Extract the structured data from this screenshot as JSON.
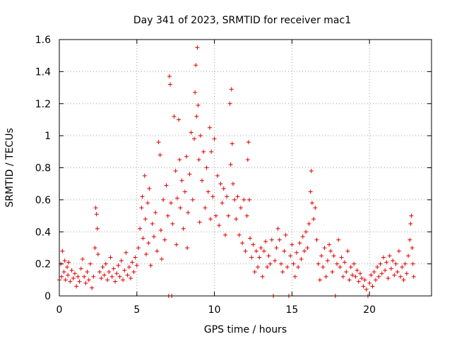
{
  "chart_data": {
    "type": "scatter",
    "title": "Day 341 of 2023, SRMTID for receiver mac1",
    "xlabel": "GPS time / hours",
    "ylabel": "SRMTID / TECUs",
    "xlim": [
      0,
      24
    ],
    "ylim": [
      0,
      1.6
    ],
    "xticks": [
      0,
      5,
      10,
      15,
      20
    ],
    "yticks": [
      0,
      0.2,
      0.4,
      0.6,
      0.8,
      1,
      1.2,
      1.4,
      1.6
    ],
    "xtick_labels": [
      "0",
      "5",
      "10",
      "15",
      "20"
    ],
    "ytick_labels": [
      "0",
      "0.2",
      "0.4",
      "0.6",
      "0.8",
      "1",
      "1.2",
      "1.4",
      "1.6"
    ],
    "grid": true,
    "marker": "+",
    "color": "#e00000",
    "series": [
      {
        "name": "SRMTID",
        "points": [
          [
            0.0,
            0.1
          ],
          [
            0.1,
            0.2
          ],
          [
            0.15,
            0.12
          ],
          [
            0.2,
            0.28
          ],
          [
            0.3,
            0.15
          ],
          [
            0.35,
            0.22
          ],
          [
            0.4,
            0.1
          ],
          [
            0.5,
            0.18
          ],
          [
            0.55,
            0.13
          ],
          [
            0.6,
            0.21
          ],
          [
            0.7,
            0.09
          ],
          [
            0.8,
            0.16
          ],
          [
            0.9,
            0.11
          ],
          [
            1.0,
            0.14
          ],
          [
            1.1,
            0.06
          ],
          [
            1.2,
            0.12
          ],
          [
            1.3,
            0.09
          ],
          [
            1.4,
            0.17
          ],
          [
            1.5,
            0.23
          ],
          [
            1.6,
            0.12
          ],
          [
            1.7,
            0.08
          ],
          [
            1.8,
            0.15
          ],
          [
            1.9,
            0.1
          ],
          [
            2.0,
            0.2
          ],
          [
            2.1,
            0.05
          ],
          [
            2.2,
            0.12
          ],
          [
            2.3,
            0.3
          ],
          [
            2.35,
            0.55
          ],
          [
            2.4,
            0.51
          ],
          [
            2.45,
            0.42
          ],
          [
            2.5,
            0.26
          ],
          [
            2.6,
            0.15
          ],
          [
            2.7,
            0.11
          ],
          [
            2.8,
            0.18
          ],
          [
            2.9,
            0.13
          ],
          [
            3.0,
            0.2
          ],
          [
            3.1,
            0.1
          ],
          [
            3.2,
            0.15
          ],
          [
            3.3,
            0.24
          ],
          [
            3.4,
            0.12
          ],
          [
            3.5,
            0.17
          ],
          [
            3.6,
            0.09
          ],
          [
            3.7,
            0.14
          ],
          [
            3.8,
            0.19
          ],
          [
            3.9,
            0.12
          ],
          [
            4.0,
            0.22
          ],
          [
            4.1,
            0.1
          ],
          [
            4.2,
            0.16
          ],
          [
            4.3,
            0.27
          ],
          [
            4.4,
            0.13
          ],
          [
            4.5,
            0.18
          ],
          [
            4.6,
            0.11
          ],
          [
            4.7,
            0.21
          ],
          [
            4.8,
            0.15
          ],
          [
            4.9,
            0.24
          ],
          [
            5.0,
            0.19
          ],
          [
            5.1,
            0.3
          ],
          [
            5.2,
            0.42
          ],
          [
            5.3,
            0.55
          ],
          [
            5.35,
            0.62
          ],
          [
            5.4,
            0.36
          ],
          [
            5.5,
            0.75
          ],
          [
            5.55,
            0.48
          ],
          [
            5.6,
            0.26
          ],
          [
            5.7,
            0.58
          ],
          [
            5.75,
            0.33
          ],
          [
            5.8,
            0.67
          ],
          [
            5.9,
            0.19
          ],
          [
            6.0,
            0.45
          ],
          [
            6.1,
            0.37
          ],
          [
            6.2,
            0.52
          ],
          [
            6.3,
            0.28
          ],
          [
            6.4,
            0.96
          ],
          [
            6.5,
            0.88
          ],
          [
            6.55,
            0.41
          ],
          [
            6.6,
            0.23
          ],
          [
            6.7,
            0.6
          ],
          [
            6.8,
            0.35
          ],
          [
            6.9,
            0.69
          ],
          [
            7.0,
            0.5
          ],
          [
            7.05,
            0.0
          ],
          [
            7.1,
            1.37
          ],
          [
            7.15,
            1.32
          ],
          [
            7.2,
            0.58
          ],
          [
            7.25,
            0.0
          ],
          [
            7.3,
            0.45
          ],
          [
            7.4,
            1.12
          ],
          [
            7.5,
            0.78
          ],
          [
            7.55,
            0.32
          ],
          [
            7.6,
            0.61
          ],
          [
            7.7,
            1.1
          ],
          [
            7.75,
            0.85
          ],
          [
            7.8,
            0.55
          ],
          [
            7.9,
            0.72
          ],
          [
            8.0,
            0.42
          ],
          [
            8.1,
            0.65
          ],
          [
            8.2,
            0.87
          ],
          [
            8.25,
            0.3
          ],
          [
            8.3,
            0.52
          ],
          [
            8.4,
            0.76
          ],
          [
            8.5,
            1.02
          ],
          [
            8.6,
            0.6
          ],
          [
            8.7,
            0.98
          ],
          [
            8.75,
            1.27
          ],
          [
            8.8,
            1.44
          ],
          [
            8.85,
            1.12
          ],
          [
            8.9,
            1.55
          ],
          [
            8.95,
            1.19
          ],
          [
            9.0,
            0.85
          ],
          [
            9.05,
            0.46
          ],
          [
            9.1,
            1.0
          ],
          [
            9.2,
            0.72
          ],
          [
            9.3,
            0.9
          ],
          [
            9.4,
            0.55
          ],
          [
            9.5,
            0.8
          ],
          [
            9.6,
            0.65
          ],
          [
            9.7,
            1.05
          ],
          [
            9.75,
            0.48
          ],
          [
            9.8,
            0.9
          ],
          [
            9.9,
            0.62
          ],
          [
            10.0,
            0.98
          ],
          [
            10.1,
            0.5
          ],
          [
            10.2,
            0.75
          ],
          [
            10.3,
            0.44
          ],
          [
            10.4,
            0.7
          ],
          [
            10.5,
            0.58
          ],
          [
            10.6,
            0.67
          ],
          [
            10.7,
            0.38
          ],
          [
            10.8,
            0.62
          ],
          [
            10.9,
            0.5
          ],
          [
            11.0,
            1.2
          ],
          [
            11.05,
            0.82
          ],
          [
            11.1,
            1.29
          ],
          [
            11.15,
            0.95
          ],
          [
            11.2,
            0.7
          ],
          [
            11.3,
            0.6
          ],
          [
            11.4,
            0.48
          ],
          [
            11.5,
            0.62
          ],
          [
            11.6,
            0.38
          ],
          [
            11.7,
            0.55
          ],
          [
            11.8,
            0.33
          ],
          [
            11.9,
            0.6
          ],
          [
            12.0,
            0.28
          ],
          [
            12.1,
            0.5
          ],
          [
            12.15,
            0.85
          ],
          [
            12.2,
            0.96
          ],
          [
            12.25,
            0.6
          ],
          [
            12.3,
            0.36
          ],
          [
            12.4,
            0.24
          ],
          [
            12.5,
            0.32
          ],
          [
            12.6,
            0.15
          ],
          [
            12.7,
            0.28
          ],
          [
            12.8,
            0.18
          ],
          [
            12.9,
            0.24
          ],
          [
            13.0,
            0.3
          ],
          [
            13.1,
            0.12
          ],
          [
            13.2,
            0.28
          ],
          [
            13.3,
            0.34
          ],
          [
            13.4,
            0.18
          ],
          [
            13.5,
            0.25
          ],
          [
            13.6,
            0.2
          ],
          [
            13.7,
            0.35
          ],
          [
            13.8,
            0.0
          ],
          [
            13.9,
            0.22
          ],
          [
            14.0,
            0.3
          ],
          [
            14.1,
            0.42
          ],
          [
            14.2,
            0.35
          ],
          [
            14.3,
            0.2
          ],
          [
            14.4,
            0.15
          ],
          [
            14.5,
            0.28
          ],
          [
            14.6,
            0.38
          ],
          [
            14.7,
            0.18
          ],
          [
            14.8,
            0.0
          ],
          [
            14.9,
            0.25
          ],
          [
            15.0,
            0.32
          ],
          [
            15.1,
            0.2
          ],
          [
            15.2,
            0.12
          ],
          [
            15.3,
            0.27
          ],
          [
            15.4,
            0.18
          ],
          [
            15.5,
            0.33
          ],
          [
            15.6,
            0.23
          ],
          [
            15.7,
            0.37
          ],
          [
            15.8,
            0.28
          ],
          [
            15.9,
            0.4
          ],
          [
            16.0,
            0.3
          ],
          [
            16.1,
            0.45
          ],
          [
            16.2,
            0.65
          ],
          [
            16.25,
            0.78
          ],
          [
            16.3,
            0.58
          ],
          [
            16.4,
            0.48
          ],
          [
            16.5,
            0.55
          ],
          [
            16.6,
            0.35
          ],
          [
            16.7,
            0.2
          ],
          [
            16.8,
            0.1
          ],
          [
            16.9,
            0.25
          ],
          [
            17.0,
            0.18
          ],
          [
            17.1,
            0.3
          ],
          [
            17.2,
            0.12
          ],
          [
            17.3,
            0.22
          ],
          [
            17.4,
            0.32
          ],
          [
            17.5,
            0.28
          ],
          [
            17.6,
            0.15
          ],
          [
            17.7,
            0.25
          ],
          [
            17.8,
            0.0
          ],
          [
            17.9,
            0.2
          ],
          [
            18.0,
            0.35
          ],
          [
            18.1,
            0.18
          ],
          [
            18.2,
            0.24
          ],
          [
            18.3,
            0.12
          ],
          [
            18.4,
            0.21
          ],
          [
            18.5,
            0.15
          ],
          [
            18.6,
            0.28
          ],
          [
            18.7,
            0.1
          ],
          [
            18.8,
            0.18
          ],
          [
            18.9,
            0.13
          ],
          [
            19.0,
            0.2
          ],
          [
            19.1,
            0.12
          ],
          [
            19.2,
            0.16
          ],
          [
            19.3,
            0.09
          ],
          [
            19.4,
            0.14
          ],
          [
            19.5,
            0.11
          ],
          [
            19.6,
            0.06
          ],
          [
            19.7,
            0.1
          ],
          [
            19.8,
            0.04
          ],
          [
            19.9,
            0.0
          ],
          [
            20.0,
            0.08
          ],
          [
            20.1,
            0.13
          ],
          [
            20.2,
            0.06
          ],
          [
            20.3,
            0.15
          ],
          [
            20.4,
            0.1
          ],
          [
            20.5,
            0.18
          ],
          [
            20.6,
            0.12
          ],
          [
            20.7,
            0.2
          ],
          [
            20.8,
            0.14
          ],
          [
            20.9,
            0.24
          ],
          [
            21.0,
            0.16
          ],
          [
            21.1,
            0.21
          ],
          [
            21.2,
            0.11
          ],
          [
            21.3,
            0.25
          ],
          [
            21.4,
            0.17
          ],
          [
            21.5,
            0.22
          ],
          [
            21.6,
            0.13
          ],
          [
            21.7,
            0.2
          ],
          [
            21.8,
            0.15
          ],
          [
            21.9,
            0.28
          ],
          [
            22.0,
            0.12
          ],
          [
            22.1,
            0.18
          ],
          [
            22.2,
            0.1
          ],
          [
            22.3,
            0.2
          ],
          [
            22.4,
            0.14
          ],
          [
            22.5,
            0.25
          ],
          [
            22.6,
            0.35
          ],
          [
            22.65,
            0.45
          ],
          [
            22.7,
            0.5
          ],
          [
            22.75,
            0.3
          ],
          [
            22.8,
            0.2
          ],
          [
            22.85,
            0.12
          ]
        ]
      }
    ]
  }
}
